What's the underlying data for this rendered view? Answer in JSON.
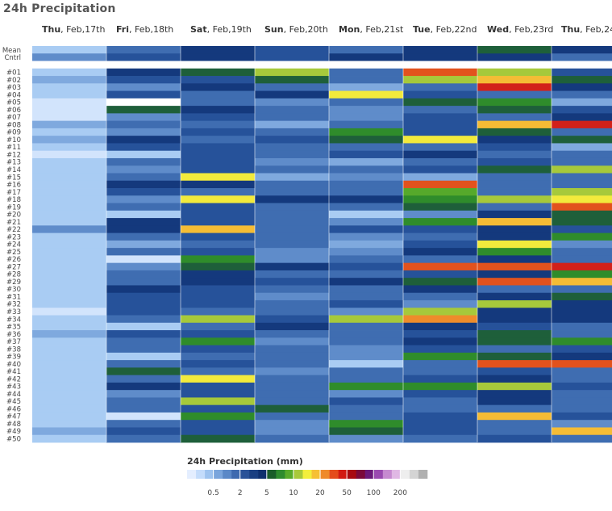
{
  "title": "24h Precipitation",
  "chart_data": {
    "type": "heatmap",
    "title": "24h Precipitation",
    "columns": [
      {
        "day": "Thu",
        "date": "Feb,17th"
      },
      {
        "day": "Fri",
        "date": "Feb,18th"
      },
      {
        "day": "Sat",
        "date": "Feb,19th"
      },
      {
        "day": "Sun",
        "date": "Feb,20th"
      },
      {
        "day": "Mon",
        "date": "Feb,21st"
      },
      {
        "day": "Tue",
        "date": "Feb,22nd"
      },
      {
        "day": "Wed",
        "date": "Feb,23rd"
      },
      {
        "day": "Thu",
        "date": "Feb,24"
      }
    ],
    "rows": [
      "Mean",
      "Cntrl",
      "",
      "#01",
      "#02",
      "#03",
      "#04",
      "#05",
      "#06",
      "#07",
      "#08",
      "#09",
      "#10",
      "#11",
      "#12",
      "#13",
      "#14",
      "#15",
      "#16",
      "#17",
      "#18",
      "#19",
      "#20",
      "#21",
      "#22",
      "#23",
      "#24",
      "#25",
      "#26",
      "#27",
      "#28",
      "#29",
      "#30",
      "#31",
      "#32",
      "#33",
      "#34",
      "#35",
      "#36",
      "#37",
      "#38",
      "#39",
      "#40",
      "#41",
      "#42",
      "#43",
      "#44",
      "#45",
      "#46",
      "#47",
      "#48",
      "#49",
      "#50"
    ],
    "values": [
      [
        1,
        4,
        8,
        6,
        5,
        9,
        10,
        8
      ],
      [
        3,
        7,
        8,
        7,
        8,
        9,
        8,
        5
      ],
      [
        null,
        null,
        null,
        null,
        null,
        null,
        null,
        null
      ],
      [
        1,
        9,
        11,
        16,
        5,
        25,
        16,
        7
      ],
      [
        2,
        6,
        7,
        11,
        4,
        16,
        19,
        11
      ],
      [
        1,
        3,
        8,
        5,
        2,
        5,
        30,
        9
      ],
      [
        1,
        6,
        4,
        8,
        18,
        6,
        4,
        5
      ],
      [
        0.5,
        0,
        4,
        3,
        4,
        11,
        12,
        2
      ],
      [
        0.5,
        11,
        9,
        5,
        3,
        5,
        11,
        6
      ],
      [
        0.7,
        3,
        6,
        5,
        3,
        6,
        4,
        8
      ],
      [
        2,
        5,
        5,
        2,
        4,
        6,
        19,
        30
      ],
      [
        1,
        3,
        6,
        4,
        12,
        7,
        10,
        5
      ],
      [
        2,
        8,
        4,
        6,
        10,
        18,
        9,
        11
      ],
      [
        1,
        6,
        6,
        5,
        4,
        5,
        7,
        2
      ],
      [
        0.7,
        1,
        6,
        5,
        7,
        8,
        5,
        4
      ],
      [
        1,
        4,
        7,
        3,
        2,
        4,
        6,
        4
      ],
      [
        1,
        3,
        6,
        5,
        4,
        6,
        10,
        16
      ],
      [
        1,
        4,
        18,
        2,
        3,
        2,
        5,
        5
      ],
      [
        1,
        8,
        8,
        4,
        5,
        25,
        5,
        5
      ],
      [
        1,
        7,
        5,
        4,
        4,
        14,
        5,
        16
      ],
      [
        1,
        3,
        18,
        9,
        8,
        12,
        16,
        18
      ],
      [
        1,
        4,
        7,
        5,
        4,
        11,
        5,
        25
      ],
      [
        1,
        0.8,
        6,
        4,
        1,
        3,
        8,
        10
      ],
      [
        1,
        8,
        7,
        5,
        3,
        12,
        20,
        11
      ],
      [
        3,
        9,
        20,
        5,
        6,
        7,
        8,
        6
      ],
      [
        1,
        5,
        6,
        4,
        3,
        5,
        8,
        12
      ],
      [
        1,
        2,
        5,
        4,
        2,
        6,
        18,
        3
      ],
      [
        1,
        5,
        6,
        3,
        3,
        8,
        12,
        4
      ],
      [
        1,
        0.7,
        12,
        3,
        4,
        4,
        8,
        5
      ],
      [
        1,
        3,
        11,
        8,
        7,
        25,
        25,
        30
      ],
      [
        1,
        5,
        8,
        5,
        4,
        6,
        8,
        12
      ],
      [
        1,
        5,
        9,
        6,
        8,
        10,
        25,
        20
      ],
      [
        1,
        8,
        7,
        4,
        5,
        8,
        5,
        5
      ],
      [
        1,
        6,
        6,
        3,
        4,
        5,
        8,
        11
      ],
      [
        1,
        7,
        6,
        5,
        7,
        3,
        16,
        8
      ],
      [
        0.7,
        6,
        4,
        5,
        3,
        16,
        9,
        9
      ],
      [
        1,
        4,
        16,
        6,
        16,
        22,
        8,
        9
      ],
      [
        1,
        1,
        5,
        8,
        4,
        8,
        6,
        5
      ],
      [
        2,
        6,
        7,
        4,
        4,
        7,
        10,
        5
      ],
      [
        1,
        5,
        12,
        3,
        4,
        8,
        11,
        12
      ],
      [
        1,
        4,
        7,
        5,
        3,
        7,
        5,
        6
      ],
      [
        1,
        0.8,
        5,
        4,
        3,
        12,
        10,
        8
      ],
      [
        1,
        5,
        7,
        4,
        1,
        5,
        25,
        25
      ],
      [
        1,
        10,
        5,
        3,
        5,
        4,
        6,
        5
      ],
      [
        1,
        5,
        18,
        4,
        5,
        6,
        9,
        4
      ],
      [
        1,
        8,
        7,
        5,
        12,
        12,
        16,
        7
      ],
      [
        1,
        3,
        6,
        4,
        3,
        6,
        8,
        5
      ],
      [
        1,
        5,
        16,
        4,
        6,
        5,
        9,
        5
      ],
      [
        1,
        4,
        6,
        11,
        4,
        5,
        5,
        4
      ],
      [
        1,
        0.7,
        12,
        4,
        5,
        7,
        20,
        6
      ],
      [
        1,
        4,
        6,
        3,
        12,
        7,
        5,
        3
      ],
      [
        2,
        6,
        7,
        3,
        10,
        6,
        5,
        20
      ],
      [
        1,
        5,
        10,
        4,
        3,
        5,
        6,
        4
      ]
    ],
    "colorbar": {
      "label": "24h Precipitation (mm)",
      "ticks": [
        "0.5",
        "2",
        "5",
        "10",
        "20",
        "50",
        "100",
        "200"
      ],
      "colors": [
        "#e4eeff",
        "#c4dcfb",
        "#9ec3ef",
        "#7aa5dc",
        "#5a88c7",
        "#3e6aaf",
        "#2a5298",
        "#1a3f82",
        "#0f2f6e",
        "#1a5c2a",
        "#2e8b2e",
        "#58ab2a",
        "#a8c93a",
        "#f3ef3c",
        "#f6c034",
        "#ef8a2a",
        "#e44c1c",
        "#d21a12",
        "#a80a10",
        "#7a0a3a",
        "#6a1a7a",
        "#9a4ab0",
        "#c68ad0",
        "#e0b8e4",
        "#eeeeee",
        "#d4d4d4",
        "#b0b0b0"
      ]
    }
  }
}
